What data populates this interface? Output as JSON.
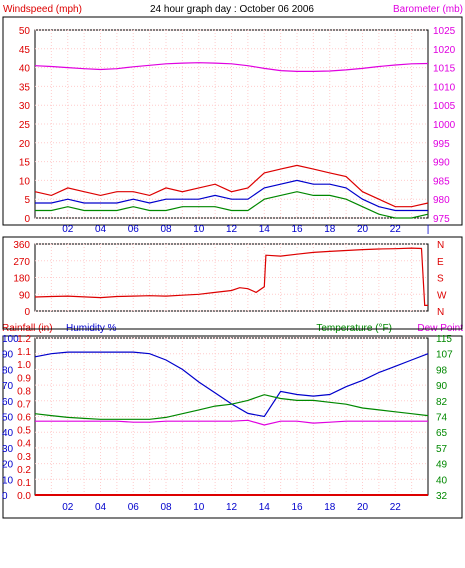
{
  "chart_data": [
    {
      "type": "line",
      "title": "24 hour graph day : October 06 2006",
      "ylabel_left": "Windspeed (mph)",
      "ylabel_right": "Barometer (mb)",
      "left_ticks": [
        "0",
        "5",
        "10",
        "15",
        "20",
        "25",
        "30",
        "35",
        "40",
        "45",
        "50"
      ],
      "right_ticks": [
        "975",
        "980",
        "985",
        "990",
        "995",
        "1000",
        "1005",
        "1010",
        "1015",
        "1020",
        "1025"
      ],
      "xlim": [
        0,
        24
      ],
      "ylim_left": [
        0,
        50
      ],
      "ylim_right": [
        975,
        1025
      ],
      "x_ticks": [
        "02",
        "04",
        "06",
        "08",
        "10",
        "12",
        "14",
        "16",
        "18",
        "20",
        "22"
      ],
      "grid": true,
      "series": [
        {
          "key": "barometer",
          "axis": "right",
          "color": "#e000e0",
          "x": [
            0,
            1,
            2,
            3,
            4,
            5,
            6,
            7,
            8,
            9,
            10,
            11,
            12,
            13,
            14,
            15,
            16,
            17,
            18,
            19,
            20,
            21,
            22,
            23,
            24
          ],
          "y": [
            1015.5,
            1015.3,
            1015.0,
            1014.7,
            1014.5,
            1014.7,
            1015.2,
            1015.6,
            1016.0,
            1016.2,
            1016.3,
            1016.2,
            1016.0,
            1015.5,
            1014.8,
            1014.2,
            1014.0,
            1014.0,
            1014.1,
            1014.4,
            1014.8,
            1015.3,
            1015.7,
            1016.0,
            1016.1
          ]
        },
        {
          "key": "wind_gust",
          "axis": "left",
          "color": "#dd0000",
          "x": [
            0,
            1,
            2,
            3,
            4,
            5,
            6,
            7,
            8,
            9,
            10,
            11,
            12,
            13,
            14,
            15,
            16,
            17,
            18,
            19,
            20,
            21,
            22,
            23,
            24
          ],
          "y": [
            7,
            6,
            8,
            7,
            6,
            7,
            7,
            6,
            8,
            7,
            8,
            9,
            7,
            8,
            12,
            13,
            14,
            13,
            12,
            11,
            7,
            5,
            3,
            3,
            4
          ]
        },
        {
          "key": "wind_avg",
          "axis": "left",
          "color": "#0000cc",
          "x": [
            0,
            1,
            2,
            3,
            4,
            5,
            6,
            7,
            8,
            9,
            10,
            11,
            12,
            13,
            14,
            15,
            16,
            17,
            18,
            19,
            20,
            21,
            22,
            23,
            24
          ],
          "y": [
            4,
            4,
            5,
            4,
            4,
            4,
            5,
            4,
            5,
            5,
            5,
            6,
            5,
            5,
            8,
            9,
            10,
            9,
            9,
            8,
            5,
            3,
            2,
            2,
            2
          ]
        },
        {
          "key": "wind_min",
          "axis": "left",
          "color": "#008800",
          "x": [
            0,
            1,
            2,
            3,
            4,
            5,
            6,
            7,
            8,
            9,
            10,
            11,
            12,
            13,
            14,
            15,
            16,
            17,
            18,
            19,
            20,
            21,
            22,
            23,
            24
          ],
          "y": [
            2,
            2,
            3,
            2,
            2,
            2,
            3,
            2,
            2,
            3,
            3,
            3,
            2,
            2,
            5,
            6,
            7,
            6,
            6,
            5,
            3,
            1,
            0,
            0,
            1
          ]
        }
      ]
    },
    {
      "type": "line",
      "ylabel_left": "",
      "left_ticks": [
        "0",
        "90",
        "180",
        "270",
        "360"
      ],
      "right_ticks": [
        "N",
        "E",
        "S",
        "W",
        "N"
      ],
      "xlim": [
        0,
        24
      ],
      "ylim_left": [
        0,
        360
      ],
      "grid": true,
      "series": [
        {
          "key": "wind_dir",
          "axis": "left",
          "color": "#dd0000",
          "x": [
            0,
            1,
            2,
            3,
            4,
            5,
            6,
            7,
            8,
            9,
            10,
            11,
            12,
            12.5,
            13,
            13.5,
            14,
            14.1,
            15,
            16,
            17,
            18,
            19,
            20,
            21,
            22,
            23,
            23.6,
            23.8,
            24
          ],
          "y": [
            75,
            78,
            80,
            76,
            72,
            78,
            80,
            82,
            80,
            85,
            90,
            100,
            110,
            125,
            120,
            100,
            130,
            300,
            295,
            305,
            315,
            320,
            325,
            330,
            333,
            335,
            338,
            336,
            30,
            30
          ]
        }
      ]
    },
    {
      "type": "line",
      "ylabel_left": "Rainfall (in)",
      "ylabel_left2": "Humidity %",
      "ylabel_right": "Temperature (°F)",
      "ylabel_right2": "Dew Point",
      "rain_ticks": [
        "0.0",
        "0.1",
        "0.2",
        "0.3",
        "0.4",
        "0.5",
        "0.6",
        "0.7",
        "0.8",
        "0.9",
        "1.0",
        "1.1",
        "1.2"
      ],
      "humidity_ticks": [
        "0",
        "10",
        "20",
        "30",
        "40",
        "50",
        "60",
        "70",
        "80",
        "90",
        "100"
      ],
      "temp_ticks": [
        "32",
        "40",
        "49",
        "57",
        "65",
        "74",
        "82",
        "90",
        "98",
        "107",
        "115"
      ],
      "xlim": [
        0,
        24
      ],
      "ylim_humidity": [
        0,
        100
      ],
      "ylim_temp": [
        32,
        115
      ],
      "x_ticks": [
        "02",
        "04",
        "06",
        "08",
        "10",
        "12",
        "14",
        "16",
        "18",
        "20",
        "22"
      ],
      "grid": true,
      "series": [
        {
          "key": "humidity",
          "axis": "humidity",
          "color": "#0000cc",
          "x": [
            0,
            1,
            2,
            3,
            4,
            5,
            6,
            7,
            8,
            9,
            10,
            11,
            12,
            13,
            14,
            15,
            16,
            17,
            18,
            19,
            20,
            21,
            22,
            23,
            24
          ],
          "y": [
            88,
            90,
            91,
            91,
            91,
            91,
            91,
            90,
            86,
            80,
            72,
            65,
            58,
            52,
            50,
            66,
            64,
            63,
            64,
            69,
            73,
            78,
            82,
            86,
            90
          ]
        },
        {
          "key": "temperature",
          "axis": "temp",
          "color": "#008800",
          "x": [
            0,
            1,
            2,
            3,
            4,
            5,
            6,
            7,
            8,
            9,
            10,
            11,
            12,
            13,
            14,
            15,
            16,
            17,
            18,
            19,
            20,
            21,
            22,
            23,
            24
          ],
          "y": [
            75,
            74,
            73,
            72.5,
            72,
            72,
            72,
            72,
            73,
            75,
            77,
            79,
            80,
            82,
            85,
            83,
            82,
            82,
            81,
            80,
            78,
            77,
            76,
            75,
            74
          ]
        },
        {
          "key": "dew_point",
          "axis": "temp",
          "color": "#e000e0",
          "x": [
            0,
            1,
            2,
            3,
            4,
            5,
            6,
            7,
            8,
            9,
            10,
            11,
            12,
            13,
            14,
            15,
            16,
            17,
            18,
            19,
            20,
            21,
            22,
            23,
            24
          ],
          "y": [
            71,
            71,
            71,
            71,
            71,
            71,
            70.5,
            70.5,
            71,
            71,
            71,
            71,
            71,
            71.5,
            69,
            71,
            71,
            70,
            70.5,
            71,
            71,
            71,
            71,
            71,
            71
          ]
        },
        {
          "key": "rainfall",
          "axis": "rain",
          "color": "#dd0000",
          "x": [
            0,
            24
          ],
          "y": [
            0.0,
            0.0
          ]
        }
      ]
    }
  ]
}
